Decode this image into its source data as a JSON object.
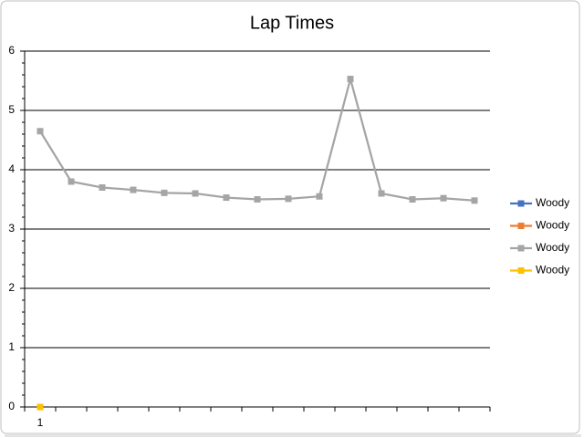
{
  "chart_data": {
    "type": "line",
    "title": "Lap Times",
    "categories": [
      "1",
      null,
      null,
      null,
      null,
      null,
      null,
      null,
      null,
      null,
      null,
      null,
      null,
      null,
      null
    ],
    "series": [
      {
        "name": "Woody",
        "color": "#4472c4",
        "values": [
          null,
          null,
          null,
          null,
          null,
          null,
          null,
          null,
          null,
          null,
          null,
          null,
          null,
          null,
          null
        ]
      },
      {
        "name": "Woody",
        "color": "#ed7d31",
        "values": [
          null,
          null,
          null,
          null,
          null,
          null,
          null,
          null,
          null,
          null,
          null,
          null,
          null,
          null,
          null
        ]
      },
      {
        "name": "Woody",
        "color": "#a5a5a5",
        "values": [
          4.65,
          3.8,
          3.7,
          3.66,
          3.61,
          3.6,
          3.53,
          3.5,
          3.51,
          3.55,
          5.53,
          3.6,
          3.5,
          3.52,
          3.48
        ]
      },
      {
        "name": "Woody",
        "color": "#ffc000",
        "values": [
          0,
          null,
          null,
          null,
          null,
          null,
          null,
          null,
          null,
          null,
          null,
          null,
          null,
          null,
          null
        ]
      }
    ],
    "ylim": [
      0,
      6
    ],
    "yticks": [
      0,
      1,
      2,
      3,
      4,
      5,
      6
    ],
    "grid": true,
    "legend": "right"
  }
}
